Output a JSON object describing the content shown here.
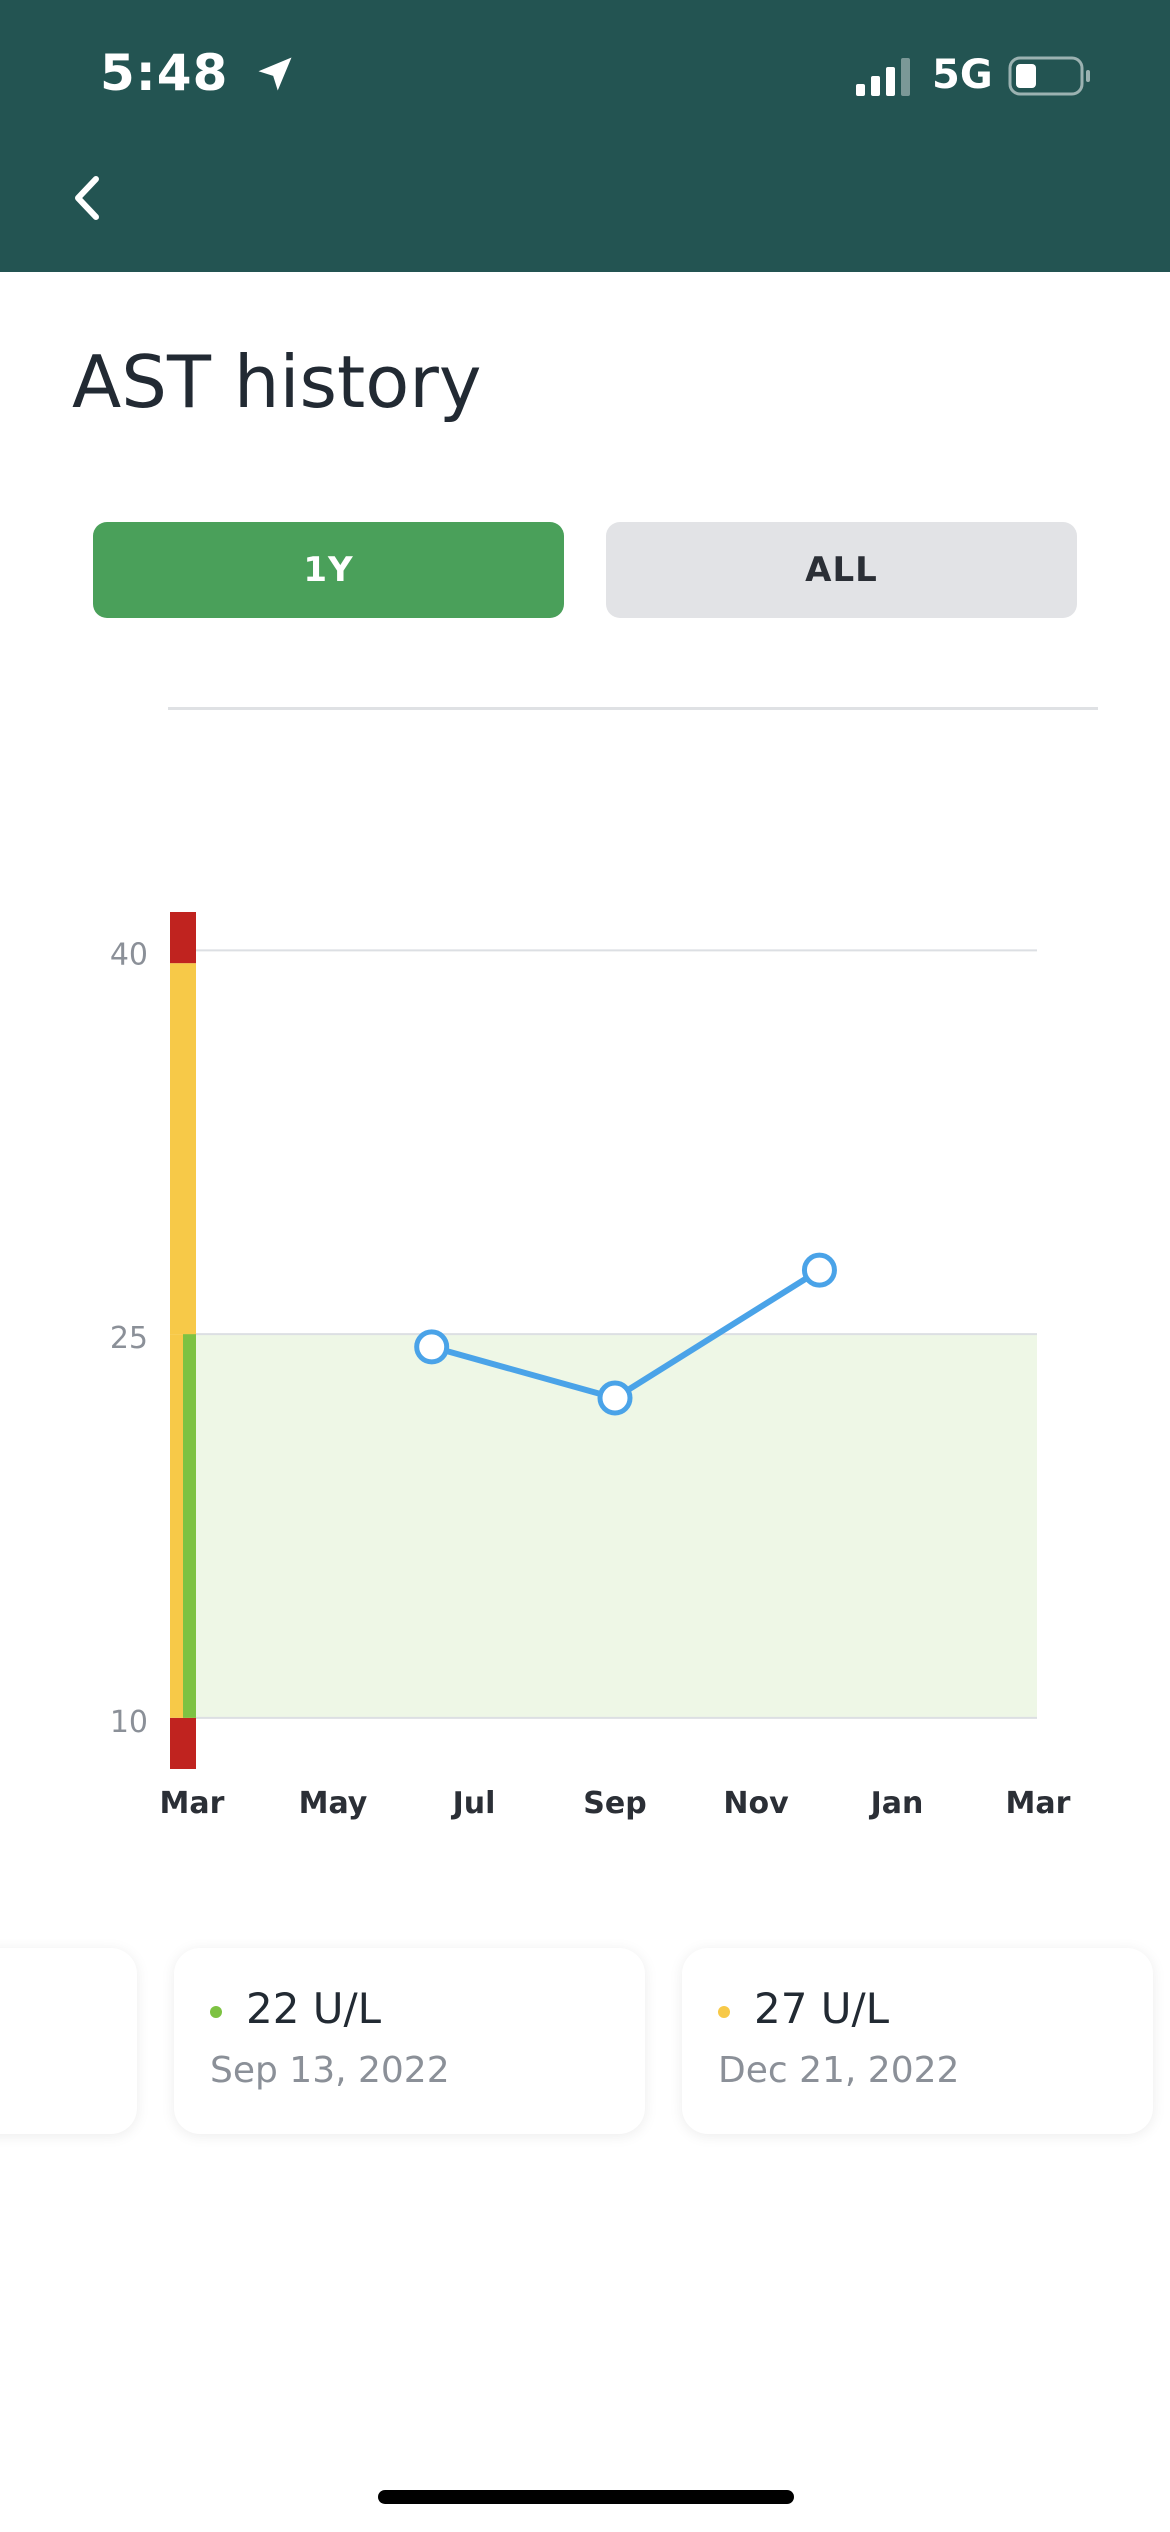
{
  "status_bar": {
    "time": "5:48",
    "network": "5G",
    "icons": [
      "location-arrow-icon",
      "signal-bars-icon",
      "battery-icon"
    ]
  },
  "header": {
    "back_icon": "chevron-left-icon",
    "background": "#235452"
  },
  "page": {
    "title": "AST history"
  },
  "range_tabs": [
    {
      "label": "1Y",
      "selected": true
    },
    {
      "label": "ALL",
      "selected": false
    }
  ],
  "colors": {
    "selected_tab": "#4aa05a",
    "line": "#4aa3e8",
    "normal_range_fill": "#eef7e6",
    "band_red": "#c0231f",
    "band_yellow": "#f7c948",
    "band_green": "#7dc242",
    "status_green": "#7dc242",
    "status_yellow": "#f7c948"
  },
  "chart_data": {
    "type": "line",
    "x_ticks": [
      "Mar",
      "May",
      "Jul",
      "Sep",
      "Nov",
      "Jan",
      "Mar"
    ],
    "y_ticks": [
      10,
      25,
      40
    ],
    "ylim": [
      8,
      41.5
    ],
    "normal_range": [
      10,
      25
    ],
    "range_bands": [
      {
        "from": 8,
        "to": 10,
        "level": "red"
      },
      {
        "from": 10,
        "to": 25,
        "level": "green"
      },
      {
        "from": 25,
        "to": 39.5,
        "level": "yellow"
      },
      {
        "from": 39.5,
        "to": 41.5,
        "level": "red"
      }
    ],
    "series": [
      {
        "points": [
          {
            "x": 1.7,
            "y": 24.5
          },
          {
            "x": 3.0,
            "y": 22.5
          },
          {
            "x": 4.45,
            "y": 27.5
          }
        ]
      }
    ]
  },
  "results": [
    {
      "value": "22 U/L",
      "date": "Sep 13, 2022",
      "status": "green"
    },
    {
      "value": "27 U/L",
      "date": "Dec 21, 2022",
      "status": "yellow"
    }
  ]
}
